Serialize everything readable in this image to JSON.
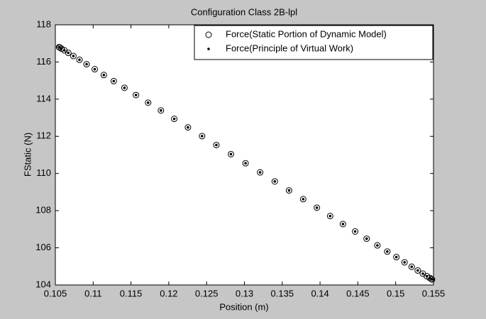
{
  "chart_data": {
    "type": "scatter",
    "title": "Configuration Class 2B-lpl",
    "x_label": "Position (m)",
    "y_label": "FStatic (N)",
    "x": [
      0.1055,
      0.10558,
      0.1058,
      0.10618,
      0.10671,
      0.10738,
      0.10819,
      0.10913,
      0.11021,
      0.11141,
      0.11272,
      0.11414,
      0.11566,
      0.11727,
      0.11896,
      0.12072,
      0.12253,
      0.1244,
      0.12629,
      0.12822,
      0.13015,
      0.13208,
      0.13401,
      0.1359,
      0.13777,
      0.13958,
      0.14134,
      0.14303,
      0.14464,
      0.14616,
      0.14758,
      0.14889,
      0.15009,
      0.15117,
      0.15211,
      0.15292,
      0.15359,
      0.15412,
      0.1545,
      0.15472,
      0.1548
    ],
    "series": [
      {
        "name": "Force(Static Portion of Dynamic Model)",
        "color": "#000000",
        "marker": "circle",
        "values": [
          116.8,
          116.78,
          116.72,
          116.63,
          116.49,
          116.32,
          116.12,
          115.88,
          115.61,
          115.3,
          114.97,
          114.61,
          114.22,
          113.81,
          113.39,
          112.94,
          112.48,
          112.01,
          111.53,
          111.04,
          110.55,
          110.06,
          109.57,
          109.09,
          108.62,
          108.16,
          107.71,
          107.28,
          106.88,
          106.49,
          106.13,
          105.8,
          105.5,
          105.22,
          104.98,
          104.78,
          104.61,
          104.47,
          104.38,
          104.32,
          104.3
        ]
      },
      {
        "name": "Force(Principle of Virtual Work)",
        "color": "#000000",
        "marker": "dot",
        "values": [
          116.8,
          116.78,
          116.72,
          116.63,
          116.49,
          116.32,
          116.12,
          115.88,
          115.61,
          115.3,
          114.97,
          114.61,
          114.22,
          113.81,
          113.39,
          112.94,
          112.48,
          112.01,
          111.53,
          111.04,
          110.55,
          110.06,
          109.57,
          109.09,
          108.62,
          108.16,
          107.71,
          107.28,
          106.88,
          106.49,
          106.13,
          105.8,
          105.5,
          105.22,
          104.98,
          104.78,
          104.61,
          104.47,
          104.38,
          104.32,
          104.3
        ]
      }
    ],
    "xlim": [
      0.105,
      0.155
    ],
    "xticks": [
      0.105,
      0.11,
      0.115,
      0.12,
      0.125,
      0.13,
      0.135,
      0.14,
      0.145,
      0.15,
      0.155
    ],
    "ylim": [
      104,
      118
    ],
    "yticks": [
      104,
      106,
      108,
      110,
      112,
      114,
      116,
      118
    ],
    "grid": false,
    "legend": "upper right"
  }
}
